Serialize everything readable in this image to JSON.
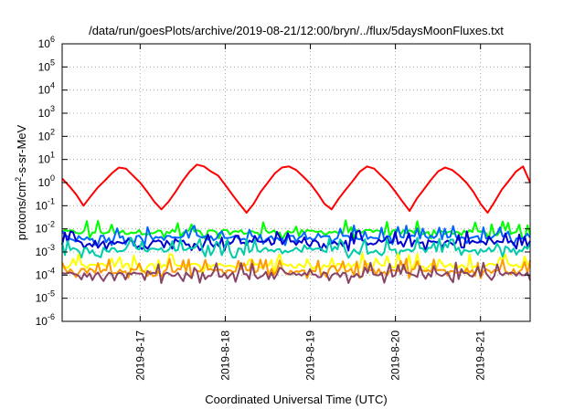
{
  "chart_data": {
    "type": "line",
    "title": "/data/run/goesPlots/archive/2019-08-21/12:00/bryn/../flux/5daysMoonFluxes.txt",
    "xlabel": "Coordinated Universal Time (UTC)",
    "ylabel_prefix": "protons/cm",
    "ylabel_sup": "2",
    "ylabel_suffix": "-s-sr-MeV",
    "yscale": "log",
    "ylim_exp": [
      -6,
      6
    ],
    "ytick_exponents": [
      -6,
      -5,
      -4,
      -3,
      -2,
      -1,
      0,
      1,
      2,
      3,
      4,
      5,
      6
    ],
    "ytick_base": "10",
    "xlim": [
      "2019-08-16 02:00",
      "2019-08-21 14:00"
    ],
    "xticks": [
      {
        "x": "2019-08-17 00:00",
        "label": "2019-8-17"
      },
      {
        "x": "2019-08-18 00:00",
        "label": "2019-8-18"
      },
      {
        "x": "2019-08-19 00:00",
        "label": "2019-8-19"
      },
      {
        "x": "2019-08-20 00:00",
        "label": "2019-8-20"
      },
      {
        "x": "2019-08-21 00:00",
        "label": "2019-8-21"
      }
    ],
    "grid": true,
    "series": [
      {
        "color": "#ff0000",
        "x": [
          "2019-08-16 02:00",
          "2019-08-16 04:00",
          "2019-08-16 06:00",
          "2019-08-16 08:00",
          "2019-08-16 10:00",
          "2019-08-16 12:00",
          "2019-08-16 14:00",
          "2019-08-16 16:00",
          "2019-08-16 18:00",
          "2019-08-16 20:00",
          "2019-08-16 22:00",
          "2019-08-17 00:00",
          "2019-08-17 02:00",
          "2019-08-17 04:00",
          "2019-08-17 06:00",
          "2019-08-17 08:00",
          "2019-08-17 10:00",
          "2019-08-17 12:00",
          "2019-08-17 14:00",
          "2019-08-17 16:00",
          "2019-08-17 18:00",
          "2019-08-17 20:00",
          "2019-08-17 22:00",
          "2019-08-18 00:00",
          "2019-08-18 02:00",
          "2019-08-18 04:00",
          "2019-08-18 06:00",
          "2019-08-18 08:00",
          "2019-08-18 10:00",
          "2019-08-18 12:00",
          "2019-08-18 14:00",
          "2019-08-18 16:00",
          "2019-08-18 18:00",
          "2019-08-18 20:00",
          "2019-08-18 22:00",
          "2019-08-19 00:00",
          "2019-08-19 02:00",
          "2019-08-19 04:00",
          "2019-08-19 06:00",
          "2019-08-19 08:00",
          "2019-08-19 10:00",
          "2019-08-19 12:00",
          "2019-08-19 14:00",
          "2019-08-19 16:00",
          "2019-08-19 18:00",
          "2019-08-19 20:00",
          "2019-08-19 22:00",
          "2019-08-20 00:00",
          "2019-08-20 02:00",
          "2019-08-20 04:00",
          "2019-08-20 06:00",
          "2019-08-20 08:00",
          "2019-08-20 10:00",
          "2019-08-20 12:00",
          "2019-08-20 14:00",
          "2019-08-20 16:00",
          "2019-08-20 18:00",
          "2019-08-20 20:00",
          "2019-08-20 22:00",
          "2019-08-21 00:00",
          "2019-08-21 02:00",
          "2019-08-21 04:00",
          "2019-08-21 06:00",
          "2019-08-21 08:00",
          "2019-08-21 10:00",
          "2019-08-21 12:00",
          "2019-08-21 14:00"
        ],
        "y": [
          1.5,
          0.7,
          0.3,
          0.1,
          0.25,
          0.6,
          1.2,
          2.5,
          4.5,
          4,
          2,
          1,
          0.4,
          0.15,
          0.07,
          0.15,
          0.4,
          1.2,
          3,
          6,
          5,
          3,
          2,
          0.8,
          0.3,
          0.12,
          0.05,
          0.12,
          0.4,
          1,
          2.5,
          4.5,
          5,
          3.5,
          1.8,
          0.9,
          0.35,
          0.12,
          0.07,
          0.2,
          0.5,
          1.2,
          3,
          5,
          4,
          2,
          1,
          0.4,
          0.15,
          0.06,
          0.2,
          0.5,
          1.3,
          3,
          4.5,
          3.5,
          2,
          1,
          0.4,
          0.12,
          0.05,
          0.15,
          0.5,
          1.2,
          3,
          5,
          1
        ]
      },
      {
        "color": "#00ff00",
        "base": 0.007
      },
      {
        "color": "#0066ff",
        "base": 0.004
      },
      {
        "color": "#0000cc",
        "base": 0.0025
      },
      {
        "color": "#00ccaa",
        "base": 0.0012
      },
      {
        "color": "#ffff00",
        "base": 0.00025
      },
      {
        "color": "#ff9900",
        "base": 0.00015
      },
      {
        "color": "#884466",
        "base": 0.0001
      }
    ]
  }
}
